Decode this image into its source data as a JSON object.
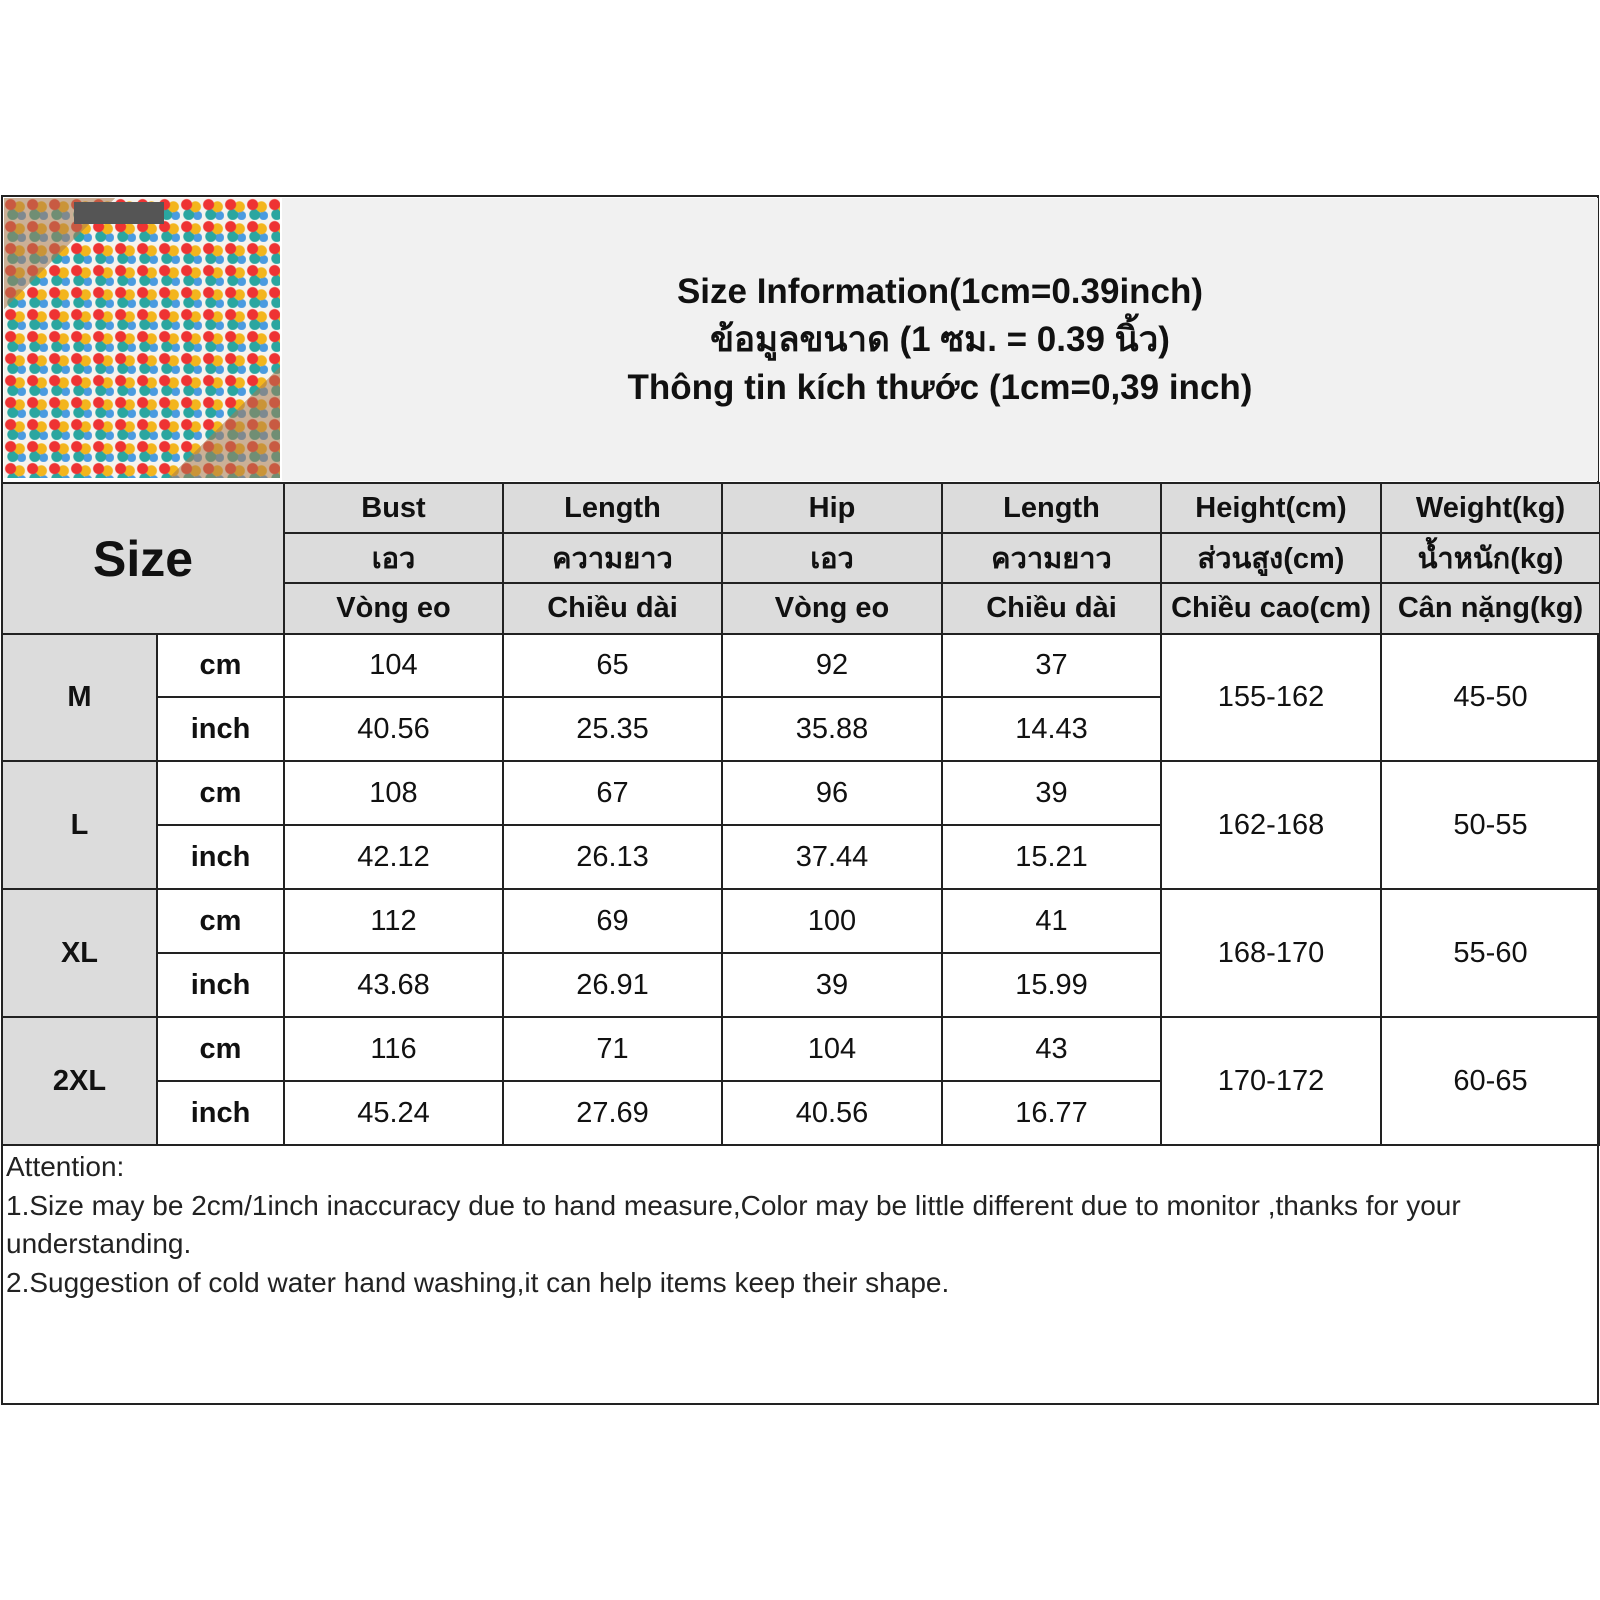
{
  "title": {
    "line1": "Size Information(1cm=0.39inch)",
    "line2": "ข้อมูลขนาด (1 ซม. = 0.39 นิ้ว)",
    "line3": "Thông tin kích thước (1cm=0,39 inch)"
  },
  "size_label": "Size",
  "columns": [
    {
      "en": "Bust",
      "th": "เอว",
      "vi": "Vòng eo"
    },
    {
      "en": "Length",
      "th": "ความยาว",
      "vi": "Chiều dài"
    },
    {
      "en": "Hip",
      "th": "เอว",
      "vi": "Vòng eo"
    },
    {
      "en": "Length",
      "th": "ความยาว",
      "vi": "Chiều dài"
    },
    {
      "en": "Height(cm)",
      "th": "ส่วนสูง(cm)",
      "vi": "Chiều cao(cm)"
    },
    {
      "en": "Weight(kg)",
      "th": "น้ำหนัก(kg)",
      "vi": "Cân nặng(kg)"
    }
  ],
  "units": {
    "cm": "cm",
    "inch": "inch"
  },
  "rows": [
    {
      "size": "M",
      "cm": [
        "104",
        "65",
        "92",
        "37"
      ],
      "inch": [
        "40.56",
        "25.35",
        "35.88",
        "14.43"
      ],
      "height": "155-162",
      "weight": "45-50"
    },
    {
      "size": "L",
      "cm": [
        "108",
        "67",
        "96",
        "39"
      ],
      "inch": [
        "42.12",
        "26.13",
        "37.44",
        "15.21"
      ],
      "height": "162-168",
      "weight": "50-55"
    },
    {
      "size": "XL",
      "cm": [
        "112",
        "69",
        "100",
        "41"
      ],
      "inch": [
        "43.68",
        "26.91",
        "39",
        "15.99"
      ],
      "height": "168-170",
      "weight": "55-60"
    },
    {
      "size": "2XL",
      "cm": [
        "116",
        "71",
        "104",
        "43"
      ],
      "inch": [
        "45.24",
        "27.69",
        "40.56",
        "16.77"
      ],
      "height": "170-172",
      "weight": "60-65"
    }
  ],
  "notes": {
    "heading": "Attention:",
    "items": [
      "1.Size may be 2cm/1inch inaccuracy due to hand measure,Color may be little different due to monitor ,thanks for your understanding.",
      "2.Suggestion of cold water hand washing,it can help items keep their shape."
    ]
  }
}
